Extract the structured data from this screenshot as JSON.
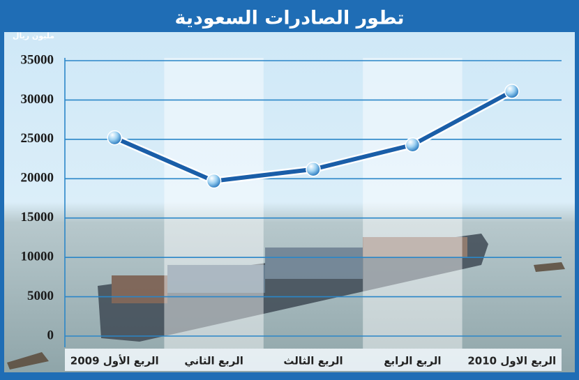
{
  "chart_data": {
    "type": "line",
    "title": "تطور الصادرات السعودية",
    "y_axis_label": "مليون ريال",
    "categories": [
      "الربع الأول 2009",
      "الربع الثاني",
      "الربع الثالث",
      "الربع الرابع",
      "الربع الاول 2010"
    ],
    "values": [
      25200,
      19700,
      21200,
      24300,
      31100
    ],
    "color": "#1a5ea8",
    "ylim": [
      0,
      35000
    ],
    "yticks": [
      0,
      5000,
      10000,
      15000,
      20000,
      25000,
      30000,
      35000
    ],
    "grid": true
  }
}
